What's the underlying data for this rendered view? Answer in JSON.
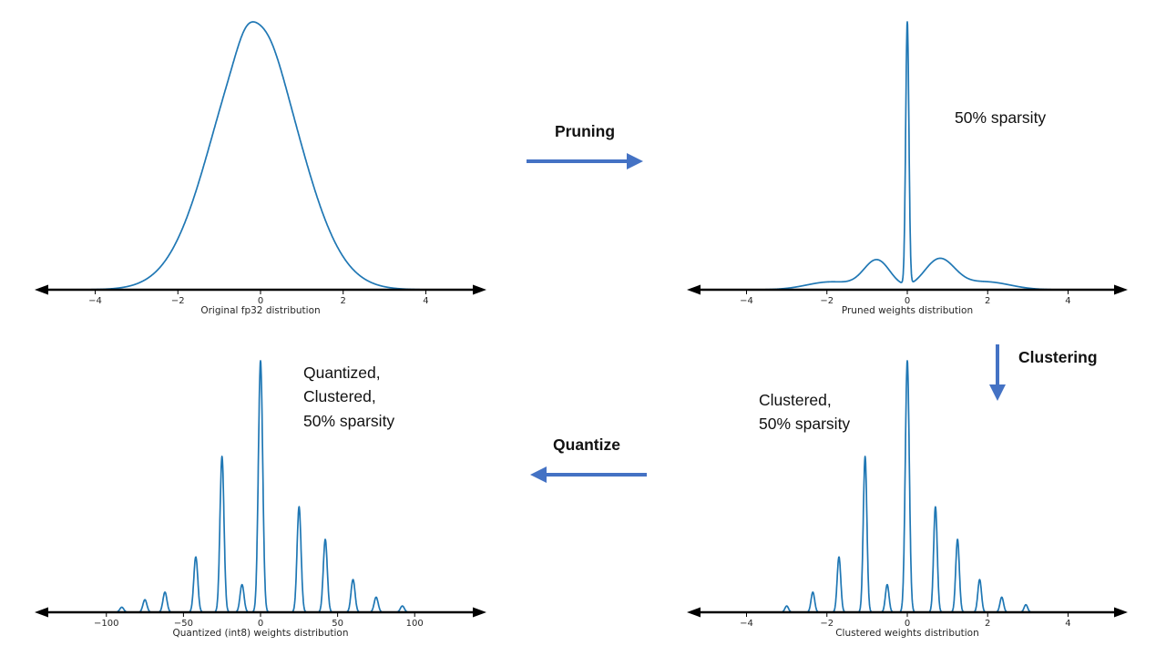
{
  "figure": {
    "background": "#ffffff"
  },
  "colors": {
    "curve": "#1f77b4",
    "arrow": "#4472c4",
    "axis": "#000000",
    "tick_text": "#262626"
  },
  "flow": {
    "pruning": "Pruning",
    "clustering": "Clustering",
    "quantize": "Quantize"
  },
  "chart_data": [
    {
      "id": "original-fp32",
      "type": "line",
      "xlabel": "Original fp32 distribution",
      "annotation": "",
      "x_ticks": [
        -4,
        -2,
        0,
        2,
        4
      ],
      "x_range": [
        -4.85,
        4.85
      ],
      "ylim": [
        0,
        1
      ],
      "grid": false,
      "curve_style": "kde-density",
      "peaks": [
        {
          "center": -0.12,
          "sigma": 1.05,
          "height": 0.97
        },
        {
          "center": -0.35,
          "sigma": 0.22,
          "height": 0.05
        },
        {
          "center": 0.18,
          "sigma": 0.3,
          "height": 0.04
        }
      ]
    },
    {
      "id": "pruned",
      "type": "line",
      "xlabel": "Pruned weights distribution",
      "annotation": "50% sparsity",
      "x_ticks": [
        -4,
        -2,
        0,
        2,
        4
      ],
      "x_range": [
        -4.85,
        4.85
      ],
      "ylim": [
        0,
        1
      ],
      "grid": false,
      "curve_style": "kde-density",
      "peaks": [
        {
          "center": 0,
          "sigma": 0.04,
          "height": 1.0
        },
        {
          "center": -0.75,
          "sigma": 0.33,
          "height": 0.11
        },
        {
          "center": 0.8,
          "sigma": 0.38,
          "height": 0.115
        },
        {
          "center": -1.9,
          "sigma": 0.6,
          "height": 0.03
        },
        {
          "center": 1.95,
          "sigma": 0.6,
          "height": 0.03
        }
      ]
    },
    {
      "id": "clustered",
      "type": "line",
      "xlabel": "Clustered weights distribution",
      "annotation": "Clustered,\n50% sparsity",
      "x_ticks": [
        -4,
        -2,
        0,
        2,
        4
      ],
      "x_range": [
        -4.85,
        4.85
      ],
      "ylim": [
        0,
        1
      ],
      "grid": false,
      "curve_style": "kde-density",
      "peaks": [
        {
          "center": -3.0,
          "sigma": 0.045,
          "height": 0.025
        },
        {
          "center": -2.35,
          "sigma": 0.045,
          "height": 0.08
        },
        {
          "center": -1.7,
          "sigma": 0.045,
          "height": 0.22
        },
        {
          "center": -1.05,
          "sigma": 0.045,
          "height": 0.62
        },
        {
          "center": -0.5,
          "sigma": 0.045,
          "height": 0.11
        },
        {
          "center": 0,
          "sigma": 0.05,
          "height": 1.0
        },
        {
          "center": 0.7,
          "sigma": 0.045,
          "height": 0.42
        },
        {
          "center": 1.25,
          "sigma": 0.045,
          "height": 0.29
        },
        {
          "center": 1.8,
          "sigma": 0.045,
          "height": 0.13
        },
        {
          "center": 2.35,
          "sigma": 0.045,
          "height": 0.06
        },
        {
          "center": 2.95,
          "sigma": 0.045,
          "height": 0.03
        }
      ]
    },
    {
      "id": "quantized-int8",
      "type": "line",
      "xlabel": "Quantized (int8) weights distribution",
      "annotation": "Quantized,\nClustered,\n50% sparsity",
      "x_ticks": [
        -100,
        -50,
        0,
        50,
        100
      ],
      "x_range": [
        -130,
        130
      ],
      "ylim": [
        0,
        1
      ],
      "grid": false,
      "curve_style": "kde-density",
      "peaks": [
        {
          "center": -90,
          "sigma": 1.3,
          "height": 0.02
        },
        {
          "center": -75,
          "sigma": 1.3,
          "height": 0.05
        },
        {
          "center": -62,
          "sigma": 1.3,
          "height": 0.08
        },
        {
          "center": -42,
          "sigma": 1.3,
          "height": 0.22
        },
        {
          "center": -25,
          "sigma": 1.3,
          "height": 0.62
        },
        {
          "center": -12,
          "sigma": 1.3,
          "height": 0.11
        },
        {
          "center": 0,
          "sigma": 1.4,
          "height": 1.0
        },
        {
          "center": 25,
          "sigma": 1.3,
          "height": 0.42
        },
        {
          "center": 42,
          "sigma": 1.3,
          "height": 0.29
        },
        {
          "center": 60,
          "sigma": 1.3,
          "height": 0.13
        },
        {
          "center": 75,
          "sigma": 1.3,
          "height": 0.06
        },
        {
          "center": 92,
          "sigma": 1.3,
          "height": 0.025
        }
      ]
    }
  ]
}
